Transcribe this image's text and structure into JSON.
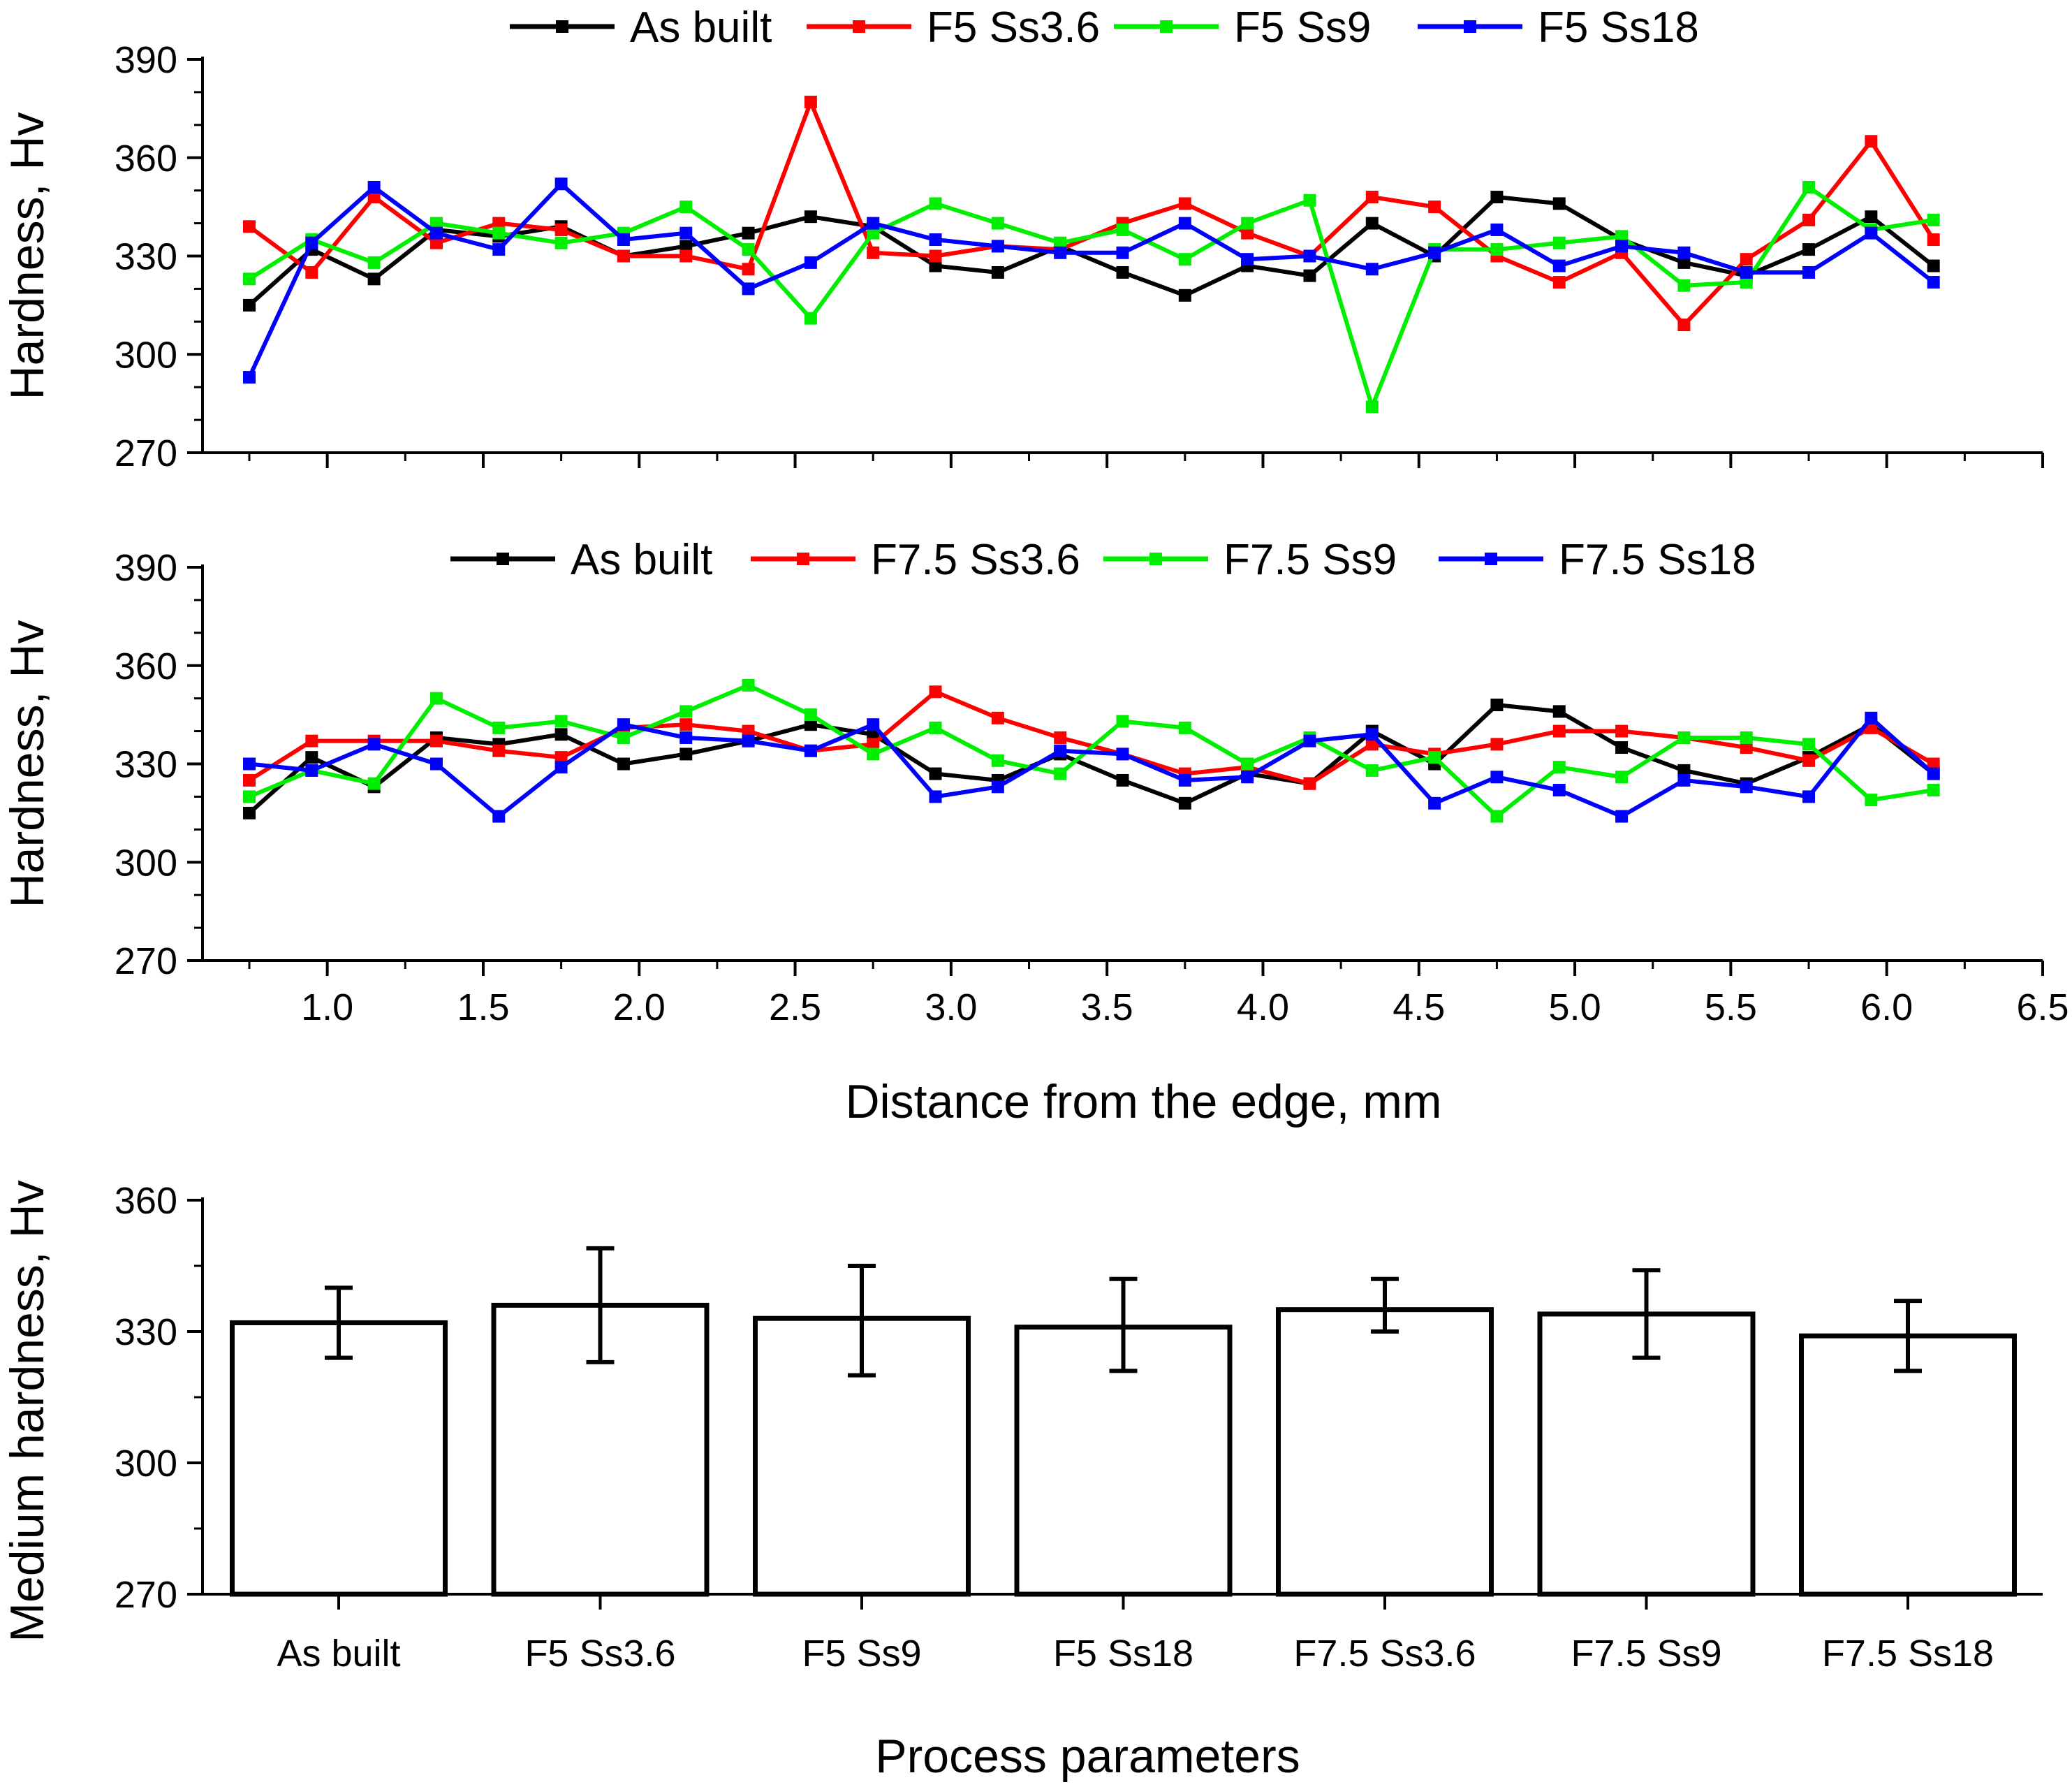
{
  "chart_data": [
    {
      "type": "line",
      "ylabel": "Hardness, Hv",
      "xlabel": "",
      "ylim": [
        270,
        390
      ],
      "yticks": [
        270,
        300,
        330,
        360,
        390
      ],
      "xlim": [
        0.6,
        6.5
      ],
      "xticks": [
        1.0,
        1.5,
        2.0,
        2.5,
        3.0,
        3.5,
        4.0,
        4.5,
        5.0,
        5.5,
        6.0,
        6.5
      ],
      "show_x_tick_labels": false,
      "legend_position": "top",
      "x": [
        0.75,
        0.95,
        1.15,
        1.35,
        1.55,
        1.75,
        1.95,
        2.15,
        2.35,
        2.55,
        2.75,
        2.95,
        3.15,
        3.35,
        3.55,
        3.75,
        3.95,
        4.15,
        4.35,
        4.55,
        4.75,
        4.95,
        5.15,
        5.35,
        5.55,
        5.75,
        5.95,
        6.15
      ],
      "series": [
        {
          "name": "As built",
          "color": "#000000",
          "values": [
            315,
            332,
            323,
            338,
            336,
            339,
            330,
            333,
            337,
            342,
            339,
            327,
            325,
            333,
            325,
            318,
            327,
            324,
            340,
            330,
            348,
            346,
            335,
            328,
            324,
            332,
            342,
            327
          ]
        },
        {
          "name": "F5 Ss3.6",
          "color": "#ff0000",
          "values": [
            339,
            325,
            348,
            334,
            340,
            338,
            330,
            330,
            326,
            377,
            331,
            330,
            333,
            332,
            340,
            346,
            337,
            330,
            348,
            345,
            330,
            322,
            331,
            309,
            329,
            341,
            365,
            335
          ]
        },
        {
          "name": "F5 Ss9",
          "color": "#00ee00",
          "values": [
            323,
            335,
            328,
            340,
            337,
            334,
            337,
            345,
            332,
            311,
            337,
            346,
            340,
            334,
            338,
            329,
            340,
            347,
            284,
            332,
            332,
            334,
            336,
            321,
            322,
            351,
            338,
            341
          ]
        },
        {
          "name": "F5 Ss18",
          "color": "#0000ff",
          "values": [
            293,
            334,
            351,
            337,
            332,
            352,
            335,
            337,
            320,
            328,
            340,
            335,
            333,
            331,
            331,
            340,
            329,
            330,
            326,
            331,
            338,
            327,
            333,
            331,
            325,
            325,
            337,
            322
          ]
        }
      ]
    },
    {
      "type": "line",
      "ylabel": "Hardness, Hv",
      "xlabel": "Distance from the edge, mm",
      "ylim": [
        270,
        390
      ],
      "yticks": [
        270,
        300,
        330,
        360,
        390
      ],
      "xlim": [
        0.6,
        6.5
      ],
      "xticks": [
        1.0,
        1.5,
        2.0,
        2.5,
        3.0,
        3.5,
        4.0,
        4.5,
        5.0,
        5.5,
        6.0,
        6.5
      ],
      "xtick_labels": [
        "1.0",
        "1.5",
        "2.0",
        "2.5",
        "3.0",
        "3.5",
        "4.0",
        "4.5",
        "5.0",
        "5.5",
        "6.0",
        "6.5"
      ],
      "show_x_tick_labels": true,
      "legend_position": "top",
      "x": [
        0.75,
        0.95,
        1.15,
        1.35,
        1.55,
        1.75,
        1.95,
        2.15,
        2.35,
        2.55,
        2.75,
        2.95,
        3.15,
        3.35,
        3.55,
        3.75,
        3.95,
        4.15,
        4.35,
        4.55,
        4.75,
        4.95,
        5.15,
        5.35,
        5.55,
        5.75,
        5.95,
        6.15
      ],
      "series": [
        {
          "name": "As built",
          "color": "#000000",
          "values": [
            315,
            332,
            323,
            338,
            336,
            339,
            330,
            333,
            337,
            342,
            339,
            327,
            325,
            333,
            325,
            318,
            327,
            324,
            340,
            330,
            348,
            346,
            335,
            328,
            324,
            332,
            342,
            327
          ]
        },
        {
          "name": "F7.5 Ss3.6",
          "color": "#ff0000",
          "values": [
            325,
            337,
            337,
            337,
            334,
            332,
            341,
            342,
            340,
            334,
            336,
            352,
            344,
            338,
            333,
            327,
            329,
            324,
            336,
            333,
            336,
            340,
            340,
            338,
            335,
            331,
            341,
            330
          ]
        },
        {
          "name": "F7.5 Ss9",
          "color": "#00ee00",
          "values": [
            320,
            328,
            324,
            350,
            341,
            343,
            338,
            346,
            354,
            345,
            333,
            341,
            331,
            327,
            343,
            341,
            330,
            338,
            328,
            332,
            314,
            329,
            326,
            338,
            338,
            336,
            319,
            322
          ]
        },
        {
          "name": "F7.5 Ss18",
          "color": "#0000ff",
          "values": [
            330,
            328,
            336,
            330,
            314,
            329,
            342,
            338,
            337,
            334,
            342,
            320,
            323,
            334,
            333,
            325,
            326,
            337,
            339,
            318,
            326,
            322,
            314,
            325,
            323,
            320,
            344,
            327
          ]
        }
      ]
    },
    {
      "type": "bar",
      "ylabel": "Medium hardness, Hv",
      "xlabel": "Process parameters",
      "ylim": [
        270,
        360
      ],
      "yticks": [
        270,
        300,
        330,
        360
      ],
      "categories": [
        "As built",
        "F5 Ss3.6",
        "F5 Ss9",
        "F5 Ss18",
        "F7.5 Ss3.6",
        "F7.5 Ss9",
        "F7.5 Ss18"
      ],
      "values": [
        332,
        336,
        333,
        331,
        335,
        334,
        329
      ],
      "error_low": [
        324,
        323,
        320,
        321,
        330,
        324,
        321
      ],
      "error_high": [
        340,
        349,
        345,
        342,
        342,
        344,
        337
      ]
    }
  ]
}
